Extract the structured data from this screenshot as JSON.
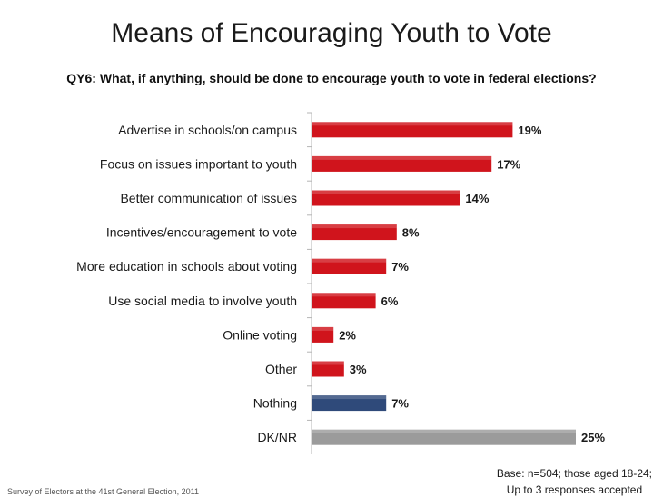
{
  "title": "Means of Encouraging Youth to Vote",
  "subtitle": "QY6: What, if anything, should be done to encourage youth to vote in federal elections?",
  "footer_source": "Survey of Electors at the 41st General Election, 2011",
  "base_note": {
    "line1": "Base: n=504; those aged 18-24;",
    "line2": "Up to 3 responses accepted"
  },
  "colors": {
    "main": "#d0141c",
    "nothing": "#2f4a7a",
    "dknr": "#9b9b9b"
  },
  "chart_data": {
    "type": "bar",
    "orientation": "horizontal",
    "categories": [
      "Advertise in schools/on campus",
      "Focus on issues important to youth",
      "Better communication of issues",
      "Incentives/encouragement to vote",
      "More education in schools about voting",
      "Use social media to involve youth",
      "Online voting",
      "Other",
      "Nothing",
      "DK/NR"
    ],
    "values": [
      19,
      17,
      14,
      8,
      7,
      6,
      2,
      3,
      7,
      25
    ],
    "value_labels": [
      "19%",
      "17%",
      "14%",
      "8%",
      "7%",
      "6%",
      "2%",
      "3%",
      "7%",
      "25%"
    ],
    "bar_colors": [
      "main",
      "main",
      "main",
      "main",
      "main",
      "main",
      "main",
      "main",
      "nothing",
      "dknr"
    ],
    "xlim": [
      0,
      25
    ],
    "grid": false,
    "legend": "none"
  }
}
